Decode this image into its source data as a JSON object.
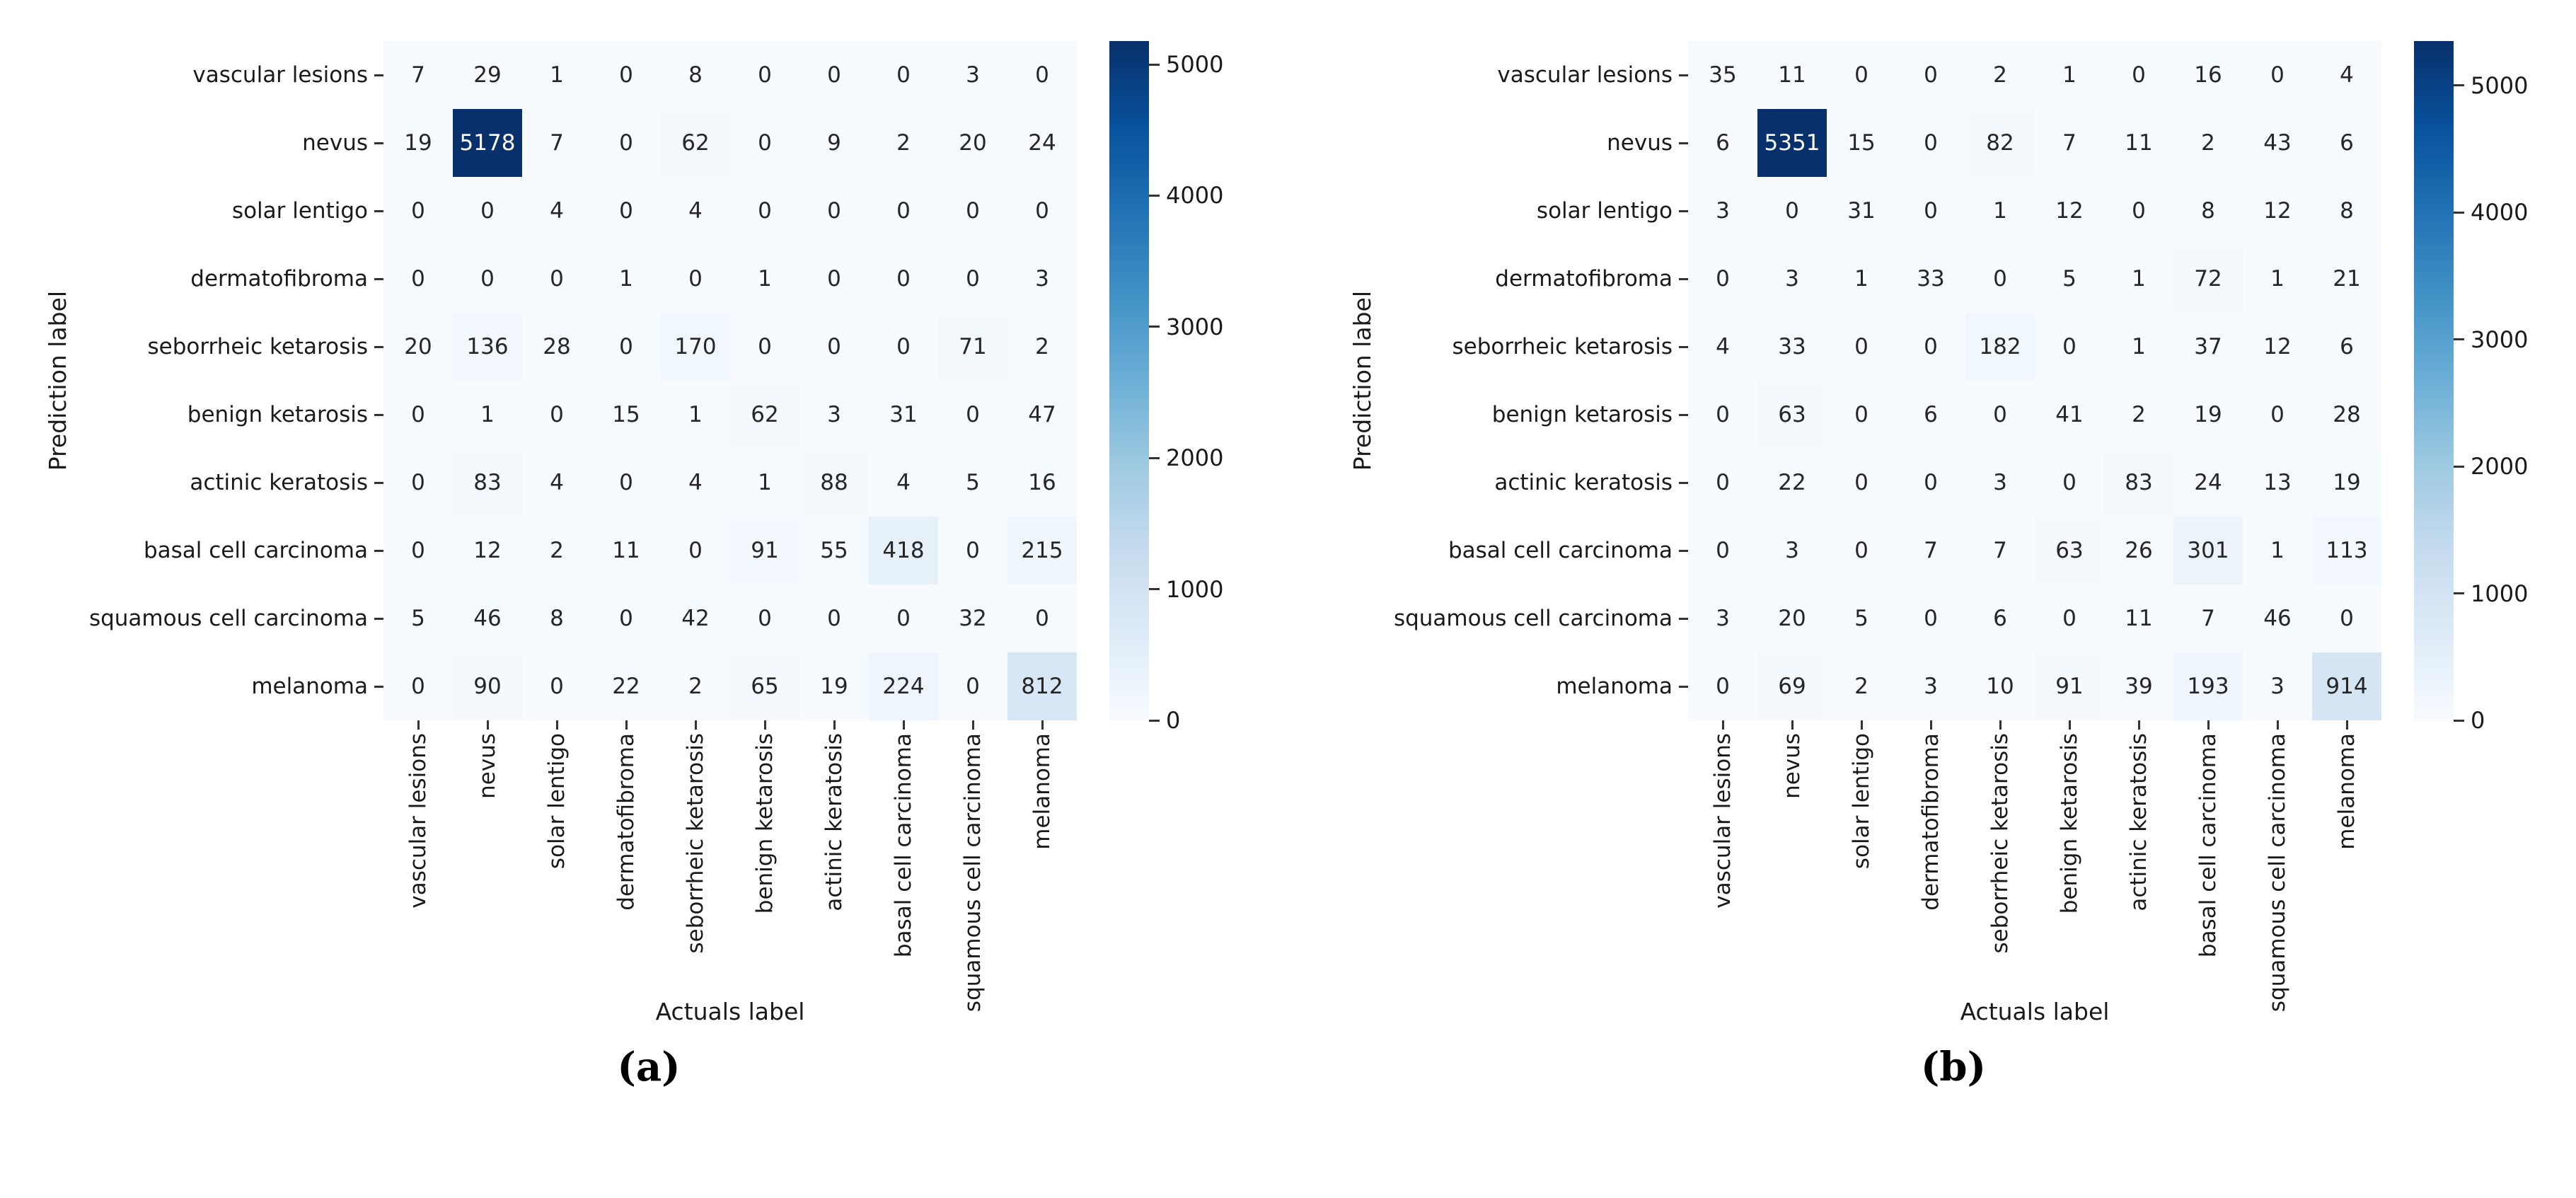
{
  "colors": {
    "background": "#ffffff",
    "text": "#1a1a1a",
    "tick": "#333333",
    "cell_text_dark": "#262626",
    "cell_text_light": "#ffffff",
    "colormap_name": "Blues",
    "colormap_anchors": [
      "#f7fbff",
      "#deebf7",
      "#c6dbef",
      "#9ecae1",
      "#6baed6",
      "#4292c6",
      "#2171b5",
      "#08519c",
      "#08306b"
    ]
  },
  "chart_data": [
    {
      "type": "heatmap",
      "caption": "(a)",
      "xlabel": "Actuals label",
      "ylabel": "Prediction label",
      "legend_position": "right-colorbar",
      "grid": false,
      "categories": [
        "vascular lesions",
        "nevus",
        "solar lentigo",
        "dermatofibroma",
        "seborrheic ketarosis",
        "benign ketarosis",
        "actinic keratosis",
        "basal cell carcinoma",
        "squamous cell carcinoma",
        "melanoma"
      ],
      "matrix": [
        [
          7,
          29,
          1,
          0,
          8,
          0,
          0,
          0,
          3,
          0
        ],
        [
          19,
          5178,
          7,
          0,
          62,
          0,
          9,
          2,
          20,
          24
        ],
        [
          0,
          0,
          4,
          0,
          4,
          0,
          0,
          0,
          0,
          0
        ],
        [
          0,
          0,
          0,
          1,
          0,
          1,
          0,
          0,
          0,
          3
        ],
        [
          20,
          136,
          28,
          0,
          170,
          0,
          0,
          0,
          71,
          2
        ],
        [
          0,
          1,
          0,
          15,
          1,
          62,
          3,
          31,
          0,
          47
        ],
        [
          0,
          83,
          4,
          0,
          4,
          1,
          88,
          4,
          5,
          16
        ],
        [
          0,
          12,
          2,
          11,
          0,
          91,
          55,
          418,
          0,
          215
        ],
        [
          5,
          46,
          8,
          0,
          42,
          0,
          0,
          0,
          32,
          0
        ],
        [
          0,
          90,
          0,
          22,
          2,
          65,
          19,
          224,
          0,
          812
        ]
      ],
      "vmin": 0,
      "vmax": 5178,
      "colorbar_ticks": [
        0,
        1000,
        2000,
        3000,
        4000,
        5000
      ]
    },
    {
      "type": "heatmap",
      "caption": "(b)",
      "xlabel": "Actuals label",
      "ylabel": "Prediction label",
      "legend_position": "right-colorbar",
      "grid": false,
      "categories": [
        "vascular lesions",
        "nevus",
        "solar lentigo",
        "dermatofibroma",
        "seborrheic ketarosis",
        "benign ketarosis",
        "actinic keratosis",
        "basal cell carcinoma",
        "squamous cell carcinoma",
        "melanoma"
      ],
      "matrix": [
        [
          35,
          11,
          0,
          0,
          2,
          1,
          0,
          16,
          0,
          4
        ],
        [
          6,
          5351,
          15,
          0,
          82,
          7,
          11,
          2,
          43,
          6
        ],
        [
          3,
          0,
          31,
          0,
          1,
          12,
          0,
          8,
          12,
          8
        ],
        [
          0,
          3,
          1,
          33,
          0,
          5,
          1,
          72,
          1,
          21
        ],
        [
          4,
          33,
          0,
          0,
          182,
          0,
          1,
          37,
          12,
          6
        ],
        [
          0,
          63,
          0,
          6,
          0,
          41,
          2,
          19,
          0,
          28
        ],
        [
          0,
          22,
          0,
          0,
          3,
          0,
          83,
          24,
          13,
          19
        ],
        [
          0,
          3,
          0,
          7,
          7,
          63,
          26,
          301,
          1,
          113
        ],
        [
          3,
          20,
          5,
          0,
          6,
          0,
          11,
          7,
          46,
          0
        ],
        [
          0,
          69,
          2,
          3,
          10,
          91,
          39,
          193,
          3,
          914
        ]
      ],
      "vmin": 0,
      "vmax": 5351,
      "colorbar_ticks": [
        0,
        1000,
        2000,
        3000,
        4000,
        5000
      ]
    }
  ]
}
